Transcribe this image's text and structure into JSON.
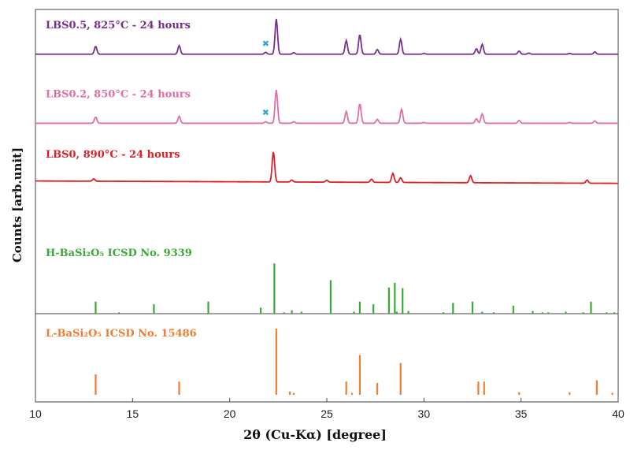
{
  "chart_data": {
    "type": "line",
    "xlabel": "2θ (Cu-Kα) [degree]",
    "ylabel": "Counts [arb.unit]",
    "xlim": [
      10,
      40
    ],
    "xticks": [
      "10",
      "15",
      "20",
      "25",
      "30",
      "35",
      "40"
    ],
    "grid": false,
    "colors": {
      "purple": "#7b2d8e",
      "pink": "#e06fa6",
      "red": "#dd1f26",
      "green": "#3aa935",
      "orange": "#ef7f30",
      "marker": "#2aa6d8"
    },
    "series": [
      {
        "name": "LBS0.5, 825°C - 24 hours",
        "color": "#7b2d8e",
        "baseline": 0.886,
        "peaks": [
          [
            13.1,
            0.02
          ],
          [
            17.4,
            0.022
          ],
          [
            21.85,
            0.005
          ],
          [
            22.4,
            0.09
          ],
          [
            23.3,
            0.004
          ],
          [
            26.0,
            0.035
          ],
          [
            26.7,
            0.05
          ],
          [
            27.6,
            0.012
          ],
          [
            28.8,
            0.038
          ],
          [
            30.0,
            0.002
          ],
          [
            32.7,
            0.014
          ],
          [
            33.0,
            0.025
          ],
          [
            34.9,
            0.008
          ],
          [
            35.4,
            0.003
          ],
          [
            37.5,
            0.002
          ],
          [
            38.8,
            0.006
          ]
        ],
        "marker_x": 21.85
      },
      {
        "name": "LBS0.2, 850°C - 24 hours",
        "color": "#e06fa6",
        "baseline": 0.71,
        "peaks": [
          [
            13.1,
            0.016
          ],
          [
            17.4,
            0.018
          ],
          [
            21.85,
            0.004
          ],
          [
            22.4,
            0.085
          ],
          [
            23.3,
            0.004
          ],
          [
            26.0,
            0.03
          ],
          [
            26.7,
            0.05
          ],
          [
            27.6,
            0.01
          ],
          [
            28.85,
            0.036
          ],
          [
            30.0,
            0.002
          ],
          [
            32.7,
            0.012
          ],
          [
            33.0,
            0.024
          ],
          [
            34.9,
            0.007
          ],
          [
            37.5,
            0.002
          ],
          [
            38.8,
            0.006
          ]
        ],
        "marker_x": 21.85
      },
      {
        "name": "LBS0, 890°C - 24 hours",
        "color": "#dd1f26",
        "baseline": 0.56,
        "peaks": [
          [
            13.0,
            0.006
          ],
          [
            22.25,
            0.077
          ],
          [
            23.2,
            0.005
          ],
          [
            25.0,
            0.005
          ],
          [
            27.3,
            0.008
          ],
          [
            28.4,
            0.023
          ],
          [
            28.8,
            0.012
          ],
          [
            32.4,
            0.018
          ],
          [
            38.4,
            0.008
          ]
        ]
      }
    ],
    "reference_patterns": [
      {
        "name": "H-BaSi₂O₅ ICSD No. 9339",
        "color": "#3aa935",
        "lines": [
          [
            13.1,
            0.18
          ],
          [
            14.3,
            0.02
          ],
          [
            16.1,
            0.14
          ],
          [
            18.9,
            0.18
          ],
          [
            21.6,
            0.09
          ],
          [
            22.3,
            0.75
          ],
          [
            22.8,
            0.02
          ],
          [
            23.2,
            0.05
          ],
          [
            23.7,
            0.03
          ],
          [
            25.2,
            0.5
          ],
          [
            26.4,
            0.03
          ],
          [
            26.7,
            0.18
          ],
          [
            27.4,
            0.14
          ],
          [
            28.2,
            0.39
          ],
          [
            28.5,
            0.46
          ],
          [
            28.6,
            0.03
          ],
          [
            28.9,
            0.38
          ],
          [
            29.2,
            0.04
          ],
          [
            31.5,
            0.16
          ],
          [
            31.0,
            0.02
          ],
          [
            32.5,
            0.18
          ],
          [
            33.0,
            0.03
          ],
          [
            33.6,
            0.02
          ],
          [
            34.6,
            0.12
          ],
          [
            35.6,
            0.04
          ],
          [
            36.1,
            0.02
          ],
          [
            36.4,
            0.02
          ],
          [
            37.3,
            0.03
          ],
          [
            38.2,
            0.02
          ],
          [
            38.6,
            0.18
          ],
          [
            39.4,
            0.02
          ],
          [
            39.8,
            0.02
          ]
        ]
      },
      {
        "name": "L-BaSi₂O₅ ICSD No. 15486",
        "color": "#ef7f30",
        "lines": [
          [
            13.1,
            0.31
          ],
          [
            17.4,
            0.2
          ],
          [
            22.4,
            1.0
          ],
          [
            23.1,
            0.05
          ],
          [
            23.3,
            0.03
          ],
          [
            26.0,
            0.2
          ],
          [
            26.3,
            0.03
          ],
          [
            26.7,
            0.6
          ],
          [
            27.6,
            0.18
          ],
          [
            28.8,
            0.48
          ],
          [
            32.8,
            0.2
          ],
          [
            33.1,
            0.2
          ],
          [
            34.9,
            0.04
          ],
          [
            37.5,
            0.04
          ],
          [
            38.9,
            0.22
          ],
          [
            39.7,
            0.03
          ]
        ]
      }
    ]
  }
}
